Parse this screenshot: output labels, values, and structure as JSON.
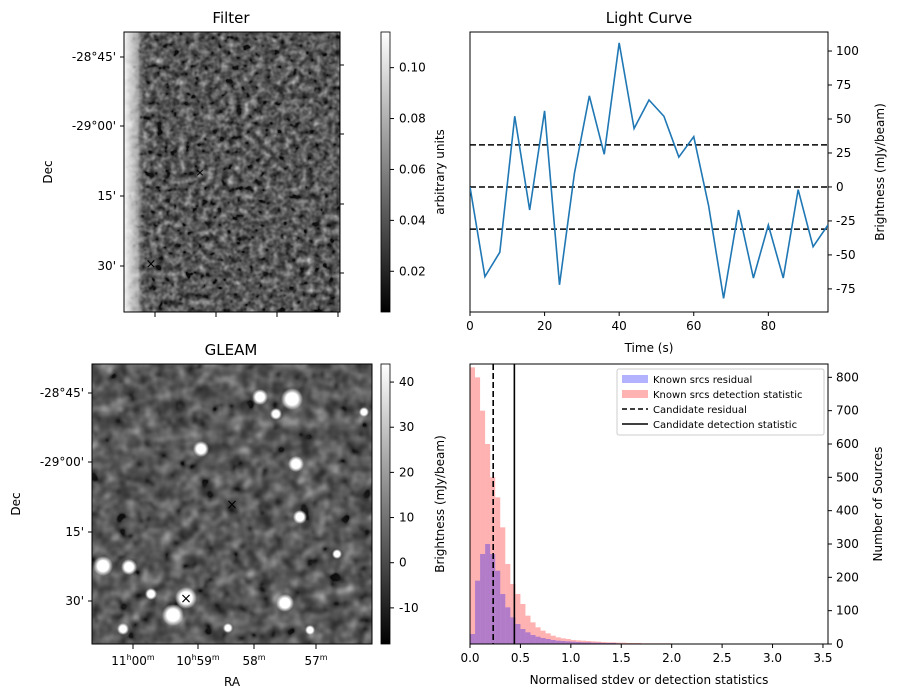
{
  "chart_data": [
    {
      "type": "heatmap",
      "title": "Filter",
      "ylabel": "Dec",
      "yticks": [
        "-28°45'",
        "-29°00'",
        "15'",
        "30'"
      ],
      "colorbar": {
        "label": "arbitrary units",
        "ticks": [
          "0.02",
          "0.04",
          "0.06",
          "0.08",
          "0.10"
        ],
        "range": [
          0.004,
          0.114
        ]
      },
      "markers": [
        {
          "symbol": "x",
          "color": "#ff0000"
        },
        {
          "symbol": "x",
          "color": "#0000ff"
        }
      ]
    },
    {
      "type": "line",
      "title": "Light Curve",
      "xlabel": "Time (s)",
      "ylabel": "Brightness (mJy/beam)",
      "xlim": [
        0,
        96
      ],
      "ylim": [
        -92,
        114
      ],
      "xticks": [
        0,
        20,
        40,
        60,
        80
      ],
      "yticks": [
        -75,
        -50,
        -25,
        0,
        25,
        50,
        75,
        100
      ],
      "series": [
        {
          "color": "#1f77b4",
          "x": [
            0,
            4,
            8,
            12,
            16,
            20,
            24,
            28,
            32,
            36,
            40,
            44,
            48,
            52,
            56,
            60,
            64,
            68,
            72,
            76,
            80,
            84,
            88,
            92,
            96
          ],
          "values": [
            0,
            -66,
            -48,
            52,
            -17,
            56,
            -72,
            10,
            67,
            24,
            106,
            43,
            64,
            52,
            22,
            37,
            -14,
            -82,
            -17,
            -67,
            -28,
            -67,
            -2,
            -44,
            -28
          ]
        }
      ],
      "hlines": [
        {
          "y": 31,
          "style": "dashed"
        },
        {
          "y": 0,
          "style": "dashed"
        },
        {
          "y": -31,
          "style": "dashed"
        }
      ]
    },
    {
      "type": "heatmap",
      "title": "GLEAM",
      "xlabel": "RA",
      "ylabel": "Dec",
      "yticks": [
        "-28°45'",
        "-29°00'",
        "15'",
        "30'"
      ],
      "xticks": [
        "11h00m",
        "10h59m",
        "58m",
        "57m"
      ],
      "colorbar": {
        "label": "Brightness (mJy/beam)",
        "ticks": [
          "-10",
          "0",
          "10",
          "20",
          "30",
          "40"
        ],
        "range": [
          -18,
          44
        ]
      },
      "markers": [
        {
          "symbol": "x",
          "color": "#ff0000"
        },
        {
          "symbol": "x",
          "color": "#0000ff"
        }
      ]
    },
    {
      "type": "bar",
      "xlabel": "Normalised stdev or detection statistics",
      "ylabel": "Number of Sources",
      "xlim": [
        0,
        3.55
      ],
      "ylim": [
        0,
        840
      ],
      "xticks": [
        0.0,
        0.5,
        1.0,
        1.5,
        2.0,
        2.5,
        3.0,
        3.5
      ],
      "yticks": [
        0,
        100,
        200,
        300,
        400,
        500,
        600,
        700,
        800
      ],
      "bin_width": 0.05,
      "series": [
        {
          "name": "Known srcs residual",
          "color": "#0000ff",
          "values": [
            30,
            190,
            270,
            300,
            270,
            220,
            150,
            110,
            80,
            60,
            45,
            35,
            27,
            22,
            18,
            15,
            12,
            10,
            9,
            8,
            7,
            6,
            5,
            5,
            4,
            4,
            3,
            3,
            3,
            2
          ]
        },
        {
          "name": "Known srcs detection statistic",
          "color": "#ff0000",
          "values": [
            830,
            800,
            700,
            600,
            500,
            440,
            350,
            240,
            180,
            150,
            120,
            85,
            65,
            50,
            40,
            32,
            25,
            20,
            17,
            15,
            12,
            11,
            10,
            9,
            8,
            7,
            6,
            5,
            5,
            4,
            4,
            3,
            3,
            3,
            2,
            2,
            2,
            2,
            2,
            2
          ]
        }
      ],
      "vlines": [
        {
          "name": "Candidate residual",
          "x": 0.23,
          "style": "dashed"
        },
        {
          "name": "Candidate detection statistic",
          "x": 0.44,
          "style": "solid"
        }
      ],
      "legend": "top-right",
      "extra_ylabel": "Brightness (mJy/beam)"
    }
  ]
}
